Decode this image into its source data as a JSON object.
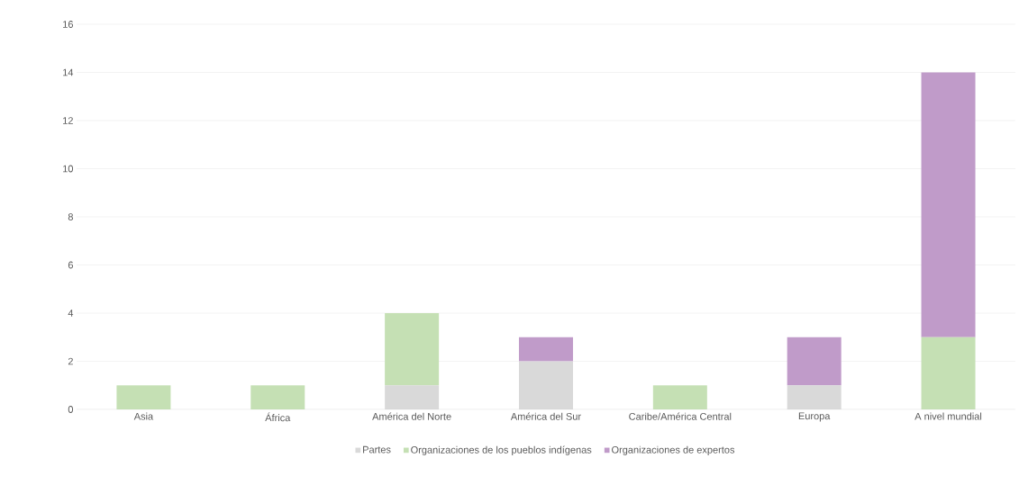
{
  "chart_data": {
    "type": "bar",
    "stacked": true,
    "categories": [
      "Asia",
      "África",
      "América del Norte",
      "América del Sur",
      "Caribe/América Central",
      "Europa",
      "A nivel mundial"
    ],
    "series": [
      {
        "name": "Partes",
        "color": "#d9d9d9",
        "values": [
          0,
          0,
          1,
          2,
          0,
          1,
          0
        ]
      },
      {
        "name": "Organizaciones de los pueblos indígenas",
        "color": "#c5e0b4",
        "values": [
          1,
          1,
          3,
          0,
          1,
          0,
          3
        ]
      },
      {
        "name": "Organizaciones de expertos",
        "color": "#c09bc9",
        "values": [
          0,
          0,
          0,
          1,
          0,
          2,
          11
        ]
      }
    ],
    "ylim": [
      0,
      16
    ],
    "yticks": [
      0,
      2,
      4,
      6,
      8,
      10,
      12,
      14,
      16
    ],
    "grid": "y",
    "legend": "bottom"
  }
}
